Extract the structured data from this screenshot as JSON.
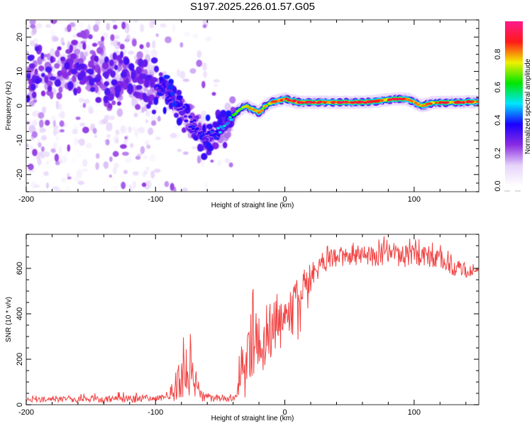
{
  "chart_data": [
    {
      "type": "heatmap",
      "title": "S197.2025.226.01.57.G05",
      "xlabel": "Height of straight line (km)",
      "ylabel": "Frequency (Hz)",
      "xlim": [
        -200,
        150
      ],
      "ylim": [
        -25,
        25
      ],
      "xticks": [
        -200,
        -100,
        0,
        100
      ],
      "xtick_labels": [
        "-200",
        "-100",
        "0",
        "100"
      ],
      "yticks": [
        -20,
        -10,
        0,
        10,
        20
      ],
      "ytick_labels": [
        "-20",
        "-10",
        "0",
        "10",
        "20"
      ],
      "grid": false,
      "colorbar": {
        "label": "Normalized spectral amplitude",
        "range": [
          0.0,
          1.0
        ],
        "ticks": [
          0.0,
          0.2,
          0.4,
          0.6,
          0.8
        ],
        "tick_labels": [
          "0.0",
          "0.2",
          "0.4",
          "0.6",
          "0.8"
        ],
        "colormap": [
          "#ffffff",
          "#e6d4fa",
          "#8a2be2",
          "#1a00ff",
          "#00e5ff",
          "#00e600",
          "#f0f000",
          "#ff1a1a",
          "#ff1a8c"
        ]
      },
      "ridge": {
        "description": "Frequency of peak spectral amplitude vs height",
        "x_km": [
          -200,
          -180,
          -160,
          -140,
          -120,
          -105,
          -95,
          -85,
          -78,
          -70,
          -62,
          -55,
          -50,
          -45,
          -40,
          -35,
          -30,
          -25,
          -20,
          -15,
          -10,
          -5,
          0,
          10,
          20,
          40,
          60,
          75,
          85,
          95,
          100,
          105,
          115,
          130,
          150
        ],
        "freq_hz": [
          8,
          10,
          12,
          10,
          8,
          6,
          5,
          1,
          -2,
          -6,
          -9,
          -8,
          -7,
          -6,
          -3,
          -1,
          0,
          -1,
          -2,
          0,
          1,
          1.5,
          2,
          1,
          1,
          1,
          1,
          1.5,
          2,
          2,
          1,
          0,
          1,
          1,
          1.2
        ],
        "amplitude": [
          0.18,
          0.2,
          0.22,
          0.22,
          0.25,
          0.28,
          0.32,
          0.35,
          0.4,
          0.42,
          0.3,
          0.5,
          0.55,
          0.55,
          0.65,
          0.72,
          0.78,
          0.85,
          0.85,
          0.8,
          0.88,
          0.9,
          0.92,
          0.95,
          0.95,
          0.96,
          0.95,
          0.9,
          0.93,
          0.92,
          0.85,
          0.8,
          0.9,
          0.93,
          0.9
        ]
      }
    },
    {
      "type": "line",
      "title": "",
      "xlabel": "Height of straight line (km)",
      "ylabel": "SNR (10 * v/v)",
      "xlim": [
        -200,
        150
      ],
      "ylim": [
        0,
        750
      ],
      "xticks": [
        -200,
        -100,
        0,
        100
      ],
      "xtick_labels": [
        "-200",
        "-100",
        "0",
        "100"
      ],
      "yticks": [
        0,
        200,
        400,
        600
      ],
      "ytick_labels": [
        "0",
        "200",
        "400",
        "600"
      ],
      "grid": false,
      "series": [
        {
          "name": "SNR",
          "color": "#f03030",
          "envelope_x_km": [
            -200,
            -180,
            -160,
            -140,
            -120,
            -110,
            -100,
            -95,
            -90,
            -85,
            -80,
            -75,
            -70,
            -65,
            -60,
            -55,
            -50,
            -45,
            -40,
            -37,
            -34,
            -30,
            -25,
            -22,
            -18,
            -14,
            -10,
            -5,
            0,
            5,
            10,
            15,
            20,
            25,
            30,
            40,
            50,
            60,
            70,
            80,
            90,
            100,
            110,
            120,
            125,
            130,
            135,
            140,
            145,
            150
          ],
          "mean_snr": [
            22,
            22,
            24,
            25,
            26,
            28,
            30,
            35,
            38,
            80,
            110,
            150,
            110,
            40,
            30,
            28,
            28,
            30,
            30,
            60,
            170,
            150,
            210,
            260,
            260,
            300,
            330,
            380,
            420,
            470,
            490,
            530,
            560,
            600,
            630,
            650,
            655,
            660,
            655,
            660,
            650,
            655,
            650,
            640,
            630,
            610,
            600,
            590,
            585,
            590
          ],
          "peak_snr": [
            40,
            45,
            50,
            55,
            60,
            55,
            55,
            70,
            60,
            200,
            280,
            350,
            260,
            90,
            60,
            55,
            55,
            60,
            60,
            120,
            480,
            400,
            520,
            570,
            480,
            590,
            560,
            600,
            560,
            590,
            620,
            640,
            680,
            700,
            720,
            730,
            740,
            735,
            740,
            745,
            740,
            750,
            735,
            720,
            700,
            690,
            670,
            660,
            650,
            640
          ]
        }
      ]
    }
  ]
}
